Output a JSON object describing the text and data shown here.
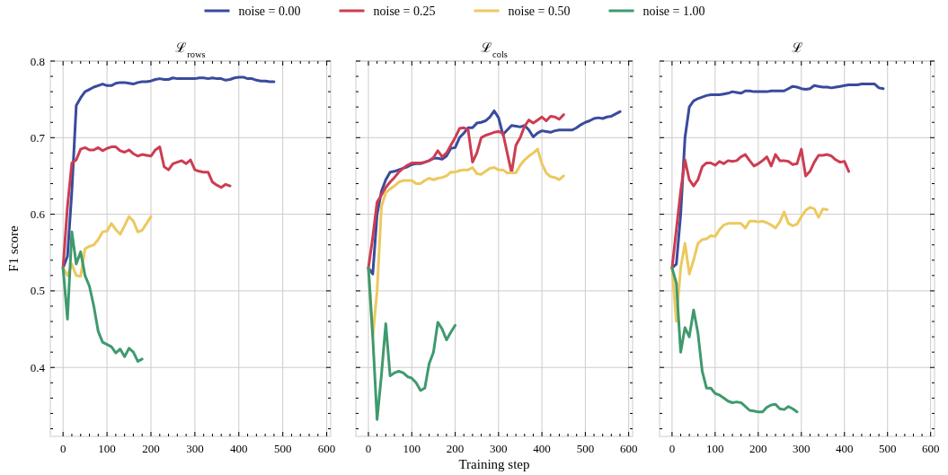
{
  "chart_data": [
    {
      "type": "line",
      "title": "ℒ$_{rows}$",
      "ylabel": "F1 score",
      "legend": "top",
      "grid": true,
      "xlim": [
        -29,
        609
      ],
      "ylim": [
        0.31,
        0.8
      ],
      "xticks": [
        0,
        {
          "value": 20,
          "label": null
        },
        {
          "value": 40,
          "label": null
        },
        {
          "value": 60,
          "label": null
        },
        {
          "value": 80,
          "label": null
        },
        100,
        {
          "value": 120,
          "label": null
        },
        {
          "value": 140,
          "label": null
        },
        {
          "value": 160,
          "label": null
        },
        {
          "value": 180,
          "label": null
        },
        200,
        {
          "value": 220,
          "label": null
        },
        {
          "value": 240,
          "label": null
        },
        {
          "value": 260,
          "label": null
        },
        {
          "value": 280,
          "label": null
        },
        300,
        {
          "value": 320,
          "label": null
        },
        {
          "value": 340,
          "label": null
        },
        {
          "value": 360,
          "label": null
        },
        {
          "value": 380,
          "label": null
        },
        400,
        {
          "value": 420,
          "label": null
        },
        {
          "value": 440,
          "label": null
        },
        {
          "value": 460,
          "label": null
        },
        {
          "value": 480,
          "label": null
        },
        500,
        {
          "value": 520,
          "label": null
        },
        {
          "value": 540,
          "label": null
        },
        {
          "value": 560,
          "label": null
        },
        {
          "value": 580,
          "label": null
        },
        600
      ],
      "yticks": [
        {
          "value": 0.32,
          "label": null
        },
        {
          "value": 0.34,
          "label": null
        },
        {
          "value": 0.36,
          "label": null
        },
        {
          "value": 0.38,
          "label": null
        },
        {
          "value": 0.4,
          "label": "0.4"
        },
        {
          "value": 0.42,
          "label": null
        },
        {
          "value": 0.44,
          "label": null
        },
        {
          "value": 0.46,
          "label": null
        },
        {
          "value": 0.48,
          "label": null
        },
        {
          "value": 0.5,
          "label": "0.5"
        },
        {
          "value": 0.52,
          "label": null
        },
        {
          "value": 0.54,
          "label": null
        },
        {
          "value": 0.56,
          "label": null
        },
        {
          "value": 0.58,
          "label": null
        },
        {
          "value": 0.6,
          "label": "0.6"
        },
        {
          "value": 0.62,
          "label": null
        },
        {
          "value": 0.64,
          "label": null
        },
        {
          "value": 0.66,
          "label": null
        },
        {
          "value": 0.68,
          "label": null
        },
        {
          "value": 0.7,
          "label": "0.7"
        },
        {
          "value": 0.72,
          "label": null
        },
        {
          "value": 0.74,
          "label": null
        },
        {
          "value": 0.76,
          "label": null
        },
        {
          "value": 0.78,
          "label": null
        },
        {
          "value": 0.8,
          "label": "0.8"
        }
      ],
      "x": [
        0,
        10,
        20,
        30,
        40,
        50,
        60,
        70,
        80,
        90,
        100,
        110,
        120,
        130,
        140,
        150,
        160,
        170,
        180,
        190,
        200,
        210,
        220,
        230,
        240,
        250,
        260,
        270,
        280,
        290,
        300,
        310,
        320,
        330,
        340,
        350,
        360,
        370,
        380,
        390,
        400,
        410,
        420,
        430,
        440,
        450,
        460,
        470,
        480
      ],
      "series": [
        {
          "name": "noise = 0.00",
          "color": "#3a4b9c",
          "values": [
            0.53,
            0.545,
            0.63,
            0.742,
            0.752,
            0.76,
            0.763,
            0.766,
            0.768,
            0.77,
            0.768,
            0.768,
            0.771,
            0.772,
            0.772,
            0.771,
            0.77,
            0.772,
            0.773,
            0.773,
            0.774,
            0.776,
            0.777,
            0.776,
            0.776,
            0.778,
            0.777,
            0.777,
            0.777,
            0.777,
            0.777,
            0.778,
            0.778,
            0.777,
            0.778,
            0.777,
            0.777,
            0.775,
            0.776,
            0.778,
            0.779,
            0.779,
            0.777,
            0.777,
            0.775,
            0.774,
            0.774,
            0.773,
            0.773
          ]
        },
        {
          "name": "noise = 0.25",
          "color": "#cc3d52",
          "values": [
            0.53,
            0.61,
            0.667,
            0.671,
            0.685,
            0.687,
            0.684,
            0.684,
            0.687,
            0.683,
            0.686,
            0.688,
            0.688,
            0.683,
            0.681,
            0.684,
            0.679,
            0.676,
            0.678,
            0.677,
            0.676,
            0.684,
            0.688,
            0.662,
            0.658,
            0.666,
            0.668,
            0.67,
            0.666,
            0.671,
            0.658,
            0.656,
            0.655,
            0.655,
            0.642,
            0.638,
            0.635,
            0.639,
            0.637,
            null,
            null,
            null,
            null,
            null,
            null,
            null,
            null,
            null,
            null
          ]
        },
        {
          "name": "noise = 0.50",
          "color": "#ecc95e",
          "values": [
            0.53,
            0.52,
            0.535,
            0.52,
            0.519,
            0.555,
            0.558,
            0.56,
            0.567,
            0.577,
            0.578,
            0.588,
            0.58,
            0.574,
            0.585,
            0.597,
            0.591,
            0.577,
            0.579,
            0.588,
            0.597,
            null,
            null,
            null,
            null,
            null,
            null,
            null,
            null,
            null,
            null,
            null,
            null,
            null,
            null,
            null,
            null,
            null,
            null,
            null,
            null,
            null,
            null,
            null,
            null,
            null,
            null,
            null,
            null
          ]
        },
        {
          "name": "noise = 1.00",
          "color": "#3f9a6e",
          "values": [
            0.53,
            0.463,
            0.577,
            0.535,
            0.551,
            0.52,
            0.506,
            0.48,
            0.447,
            0.433,
            0.43,
            0.427,
            0.419,
            0.424,
            0.414,
            0.425,
            0.42,
            0.408,
            0.411,
            null,
            null,
            null,
            null,
            null,
            null,
            null,
            null,
            null,
            null,
            null,
            null,
            null,
            null,
            null,
            null,
            null,
            null,
            null,
            null,
            null,
            null,
            null,
            null,
            null,
            null,
            null,
            null,
            null,
            null
          ]
        }
      ]
    },
    {
      "type": "line",
      "title": "ℒ$_{cols}$",
      "xlabel": "Training step",
      "grid": true,
      "tick_labels": "x",
      "xlim": [
        -29,
        609
      ],
      "ylim": [
        0.31,
        0.8
      ],
      "xticks": [
        0,
        {
          "value": 20,
          "label": null
        },
        {
          "value": 40,
          "label": null
        },
        {
          "value": 60,
          "label": null
        },
        {
          "value": 80,
          "label": null
        },
        100,
        {
          "value": 120,
          "label": null
        },
        {
          "value": 140,
          "label": null
        },
        {
          "value": 160,
          "label": null
        },
        {
          "value": 180,
          "label": null
        },
        200,
        {
          "value": 220,
          "label": null
        },
        {
          "value": 240,
          "label": null
        },
        {
          "value": 260,
          "label": null
        },
        {
          "value": 280,
          "label": null
        },
        300,
        {
          "value": 320,
          "label": null
        },
        {
          "value": 340,
          "label": null
        },
        {
          "value": 360,
          "label": null
        },
        {
          "value": 380,
          "label": null
        },
        400,
        {
          "value": 420,
          "label": null
        },
        {
          "value": 440,
          "label": null
        },
        {
          "value": 460,
          "label": null
        },
        {
          "value": 480,
          "label": null
        },
        500,
        {
          "value": 520,
          "label": null
        },
        {
          "value": 540,
          "label": null
        },
        {
          "value": 560,
          "label": null
        },
        {
          "value": 580,
          "label": null
        },
        600
      ],
      "yticks": [
        {
          "value": 0.32,
          "label": null
        },
        {
          "value": 0.34,
          "label": null
        },
        {
          "value": 0.36,
          "label": null
        },
        {
          "value": 0.38,
          "label": null
        },
        {
          "value": 0.4,
          "label": null
        },
        {
          "value": 0.42,
          "label": null
        },
        {
          "value": 0.44,
          "label": null
        },
        {
          "value": 0.46,
          "label": null
        },
        {
          "value": 0.48,
          "label": null
        },
        {
          "value": 0.5,
          "label": null
        },
        {
          "value": 0.52,
          "label": null
        },
        {
          "value": 0.54,
          "label": null
        },
        {
          "value": 0.56,
          "label": null
        },
        {
          "value": 0.58,
          "label": null
        },
        {
          "value": 0.6,
          "label": null
        },
        {
          "value": 0.62,
          "label": null
        },
        {
          "value": 0.64,
          "label": null
        },
        {
          "value": 0.66,
          "label": null
        },
        {
          "value": 0.68,
          "label": null
        },
        {
          "value": 0.7,
          "label": null
        },
        {
          "value": 0.72,
          "label": null
        },
        {
          "value": 0.74,
          "label": null
        },
        {
          "value": 0.76,
          "label": null
        },
        {
          "value": 0.78,
          "label": null
        },
        {
          "value": 0.8,
          "label": null
        }
      ],
      "x": [
        0,
        10,
        20,
        30,
        40,
        50,
        60,
        70,
        80,
        90,
        100,
        110,
        120,
        130,
        140,
        150,
        160,
        170,
        180,
        190,
        200,
        210,
        220,
        230,
        240,
        250,
        260,
        270,
        280,
        290,
        300,
        310,
        320,
        330,
        340,
        350,
        360,
        370,
        380,
        390,
        400,
        410,
        420,
        430,
        440,
        450,
        460,
        470,
        480,
        490,
        500,
        510,
        520,
        530,
        540,
        550,
        560,
        570,
        580
      ],
      "series": [
        {
          "color": "#3a4b9c",
          "values": [
            0.53,
            0.522,
            0.6,
            0.63,
            0.645,
            0.655,
            0.656,
            0.658,
            0.66,
            0.662,
            0.665,
            0.666,
            0.666,
            0.668,
            0.67,
            0.673,
            0.673,
            0.672,
            0.676,
            0.686,
            0.687,
            0.7,
            0.706,
            0.713,
            0.713,
            0.719,
            0.72,
            0.722,
            0.727,
            0.735,
            0.726,
            0.704,
            0.71,
            0.716,
            0.715,
            0.714,
            0.716,
            0.71,
            0.701,
            0.706,
            0.709,
            0.708,
            0.707,
            0.709,
            0.71,
            0.71,
            0.71,
            0.71,
            0.713,
            0.717,
            0.72,
            0.722,
            0.725,
            0.726,
            0.725,
            0.727,
            0.728,
            0.731,
            0.734
          ]
        },
        {
          "color": "#cc3d52",
          "values": [
            0.53,
            0.57,
            0.616,
            0.625,
            0.635,
            0.642,
            0.648,
            0.655,
            0.66,
            0.664,
            0.667,
            0.667,
            0.667,
            0.668,
            0.67,
            0.674,
            0.683,
            0.675,
            0.68,
            0.69,
            0.7,
            0.712,
            0.713,
            0.71,
            0.668,
            0.68,
            0.7,
            0.703,
            0.705,
            0.707,
            0.708,
            0.706,
            0.68,
            0.654,
            0.69,
            0.7,
            0.715,
            0.723,
            0.719,
            0.723,
            0.727,
            0.722,
            0.728,
            0.727,
            0.724,
            0.73,
            null,
            null,
            null,
            null,
            null,
            null,
            null,
            null,
            null,
            null,
            null,
            null,
            null
          ]
        },
        {
          "color": "#ecc95e",
          "values": [
            0.53,
            0.44,
            0.5,
            0.61,
            0.628,
            0.633,
            0.637,
            0.642,
            0.644,
            0.644,
            0.644,
            0.64,
            0.64,
            0.644,
            0.647,
            0.645,
            0.647,
            0.648,
            0.65,
            0.655,
            0.655,
            0.657,
            0.658,
            0.658,
            0.661,
            0.653,
            0.652,
            0.656,
            0.66,
            0.661,
            0.658,
            0.658,
            0.654,
            0.654,
            0.654,
            0.664,
            0.671,
            0.676,
            0.68,
            0.685,
            0.666,
            0.654,
            0.649,
            0.648,
            0.645,
            0.65,
            null,
            null,
            null,
            null,
            null,
            null,
            null,
            null,
            null,
            null,
            null,
            null,
            null
          ]
        },
        {
          "color": "#3f9a6e",
          "values": [
            0.53,
            0.44,
            0.332,
            0.39,
            0.457,
            0.389,
            0.393,
            0.395,
            0.393,
            0.388,
            0.386,
            0.38,
            0.37,
            0.373,
            0.405,
            0.42,
            0.459,
            0.45,
            0.436,
            0.446,
            0.455,
            null,
            null,
            null,
            null,
            null,
            null,
            null,
            null,
            null,
            null,
            null,
            null,
            null,
            null,
            null,
            null,
            null,
            null,
            null,
            null,
            null,
            null,
            null,
            null,
            null,
            null,
            null,
            null,
            null,
            null,
            null,
            null,
            null,
            null,
            null,
            null,
            null,
            null
          ]
        }
      ]
    },
    {
      "type": "line",
      "title": "ℒ",
      "grid": true,
      "tick_labels": "x",
      "xlim": [
        -29,
        609
      ],
      "ylim": [
        0.31,
        0.8
      ],
      "xticks": [
        0,
        {
          "value": 20,
          "label": null
        },
        {
          "value": 40,
          "label": null
        },
        {
          "value": 60,
          "label": null
        },
        {
          "value": 80,
          "label": null
        },
        100,
        {
          "value": 120,
          "label": null
        },
        {
          "value": 140,
          "label": null
        },
        {
          "value": 160,
          "label": null
        },
        {
          "value": 180,
          "label": null
        },
        200,
        {
          "value": 220,
          "label": null
        },
        {
          "value": 240,
          "label": null
        },
        {
          "value": 260,
          "label": null
        },
        {
          "value": 280,
          "label": null
        },
        300,
        {
          "value": 320,
          "label": null
        },
        {
          "value": 340,
          "label": null
        },
        {
          "value": 360,
          "label": null
        },
        {
          "value": 380,
          "label": null
        },
        400,
        {
          "value": 420,
          "label": null
        },
        {
          "value": 440,
          "label": null
        },
        {
          "value": 460,
          "label": null
        },
        {
          "value": 480,
          "label": null
        },
        500,
        {
          "value": 520,
          "label": null
        },
        {
          "value": 540,
          "label": null
        },
        {
          "value": 560,
          "label": null
        },
        {
          "value": 580,
          "label": null
        },
        600
      ],
      "yticks": [
        {
          "value": 0.32,
          "label": null
        },
        {
          "value": 0.34,
          "label": null
        },
        {
          "value": 0.36,
          "label": null
        },
        {
          "value": 0.38,
          "label": null
        },
        {
          "value": 0.4,
          "label": null
        },
        {
          "value": 0.42,
          "label": null
        },
        {
          "value": 0.44,
          "label": null
        },
        {
          "value": 0.46,
          "label": null
        },
        {
          "value": 0.48,
          "label": null
        },
        {
          "value": 0.5,
          "label": null
        },
        {
          "value": 0.52,
          "label": null
        },
        {
          "value": 0.54,
          "label": null
        },
        {
          "value": 0.56,
          "label": null
        },
        {
          "value": 0.58,
          "label": null
        },
        {
          "value": 0.6,
          "label": null
        },
        {
          "value": 0.62,
          "label": null
        },
        {
          "value": 0.64,
          "label": null
        },
        {
          "value": 0.66,
          "label": null
        },
        {
          "value": 0.68,
          "label": null
        },
        {
          "value": 0.7,
          "label": null
        },
        {
          "value": 0.72,
          "label": null
        },
        {
          "value": 0.74,
          "label": null
        },
        {
          "value": 0.76,
          "label": null
        },
        {
          "value": 0.78,
          "label": null
        },
        {
          "value": 0.8,
          "label": null
        }
      ],
      "x": [
        0,
        10,
        20,
        30,
        40,
        50,
        60,
        70,
        80,
        90,
        100,
        110,
        120,
        130,
        140,
        150,
        160,
        170,
        180,
        190,
        200,
        210,
        220,
        230,
        240,
        250,
        260,
        270,
        280,
        290,
        300,
        310,
        320,
        330,
        340,
        350,
        360,
        370,
        380,
        390,
        400,
        410,
        420,
        430,
        440,
        450,
        460,
        470,
        480,
        490
      ],
      "series": [
        {
          "color": "#3a4b9c",
          "values": [
            0.53,
            0.535,
            0.6,
            0.7,
            0.74,
            0.748,
            0.751,
            0.753,
            0.755,
            0.756,
            0.756,
            0.756,
            0.757,
            0.758,
            0.76,
            0.759,
            0.758,
            0.761,
            0.761,
            0.76,
            0.76,
            0.76,
            0.76,
            0.761,
            0.761,
            0.761,
            0.761,
            0.764,
            0.767,
            0.766,
            0.764,
            0.763,
            0.764,
            0.768,
            0.767,
            0.766,
            0.766,
            0.765,
            0.766,
            0.767,
            0.768,
            0.769,
            0.769,
            0.769,
            0.77,
            0.77,
            0.77,
            0.77,
            0.765,
            0.764
          ]
        },
        {
          "color": "#cc3d52",
          "values": [
            0.53,
            0.58,
            0.63,
            0.671,
            0.645,
            0.637,
            0.645,
            0.662,
            0.667,
            0.667,
            0.664,
            0.669,
            0.666,
            0.67,
            0.669,
            0.67,
            0.675,
            0.678,
            0.67,
            0.663,
            0.666,
            0.67,
            0.675,
            0.663,
            0.678,
            0.67,
            0.67,
            0.669,
            0.665,
            0.666,
            0.685,
            0.65,
            0.656,
            0.668,
            0.677,
            0.677,
            0.678,
            0.676,
            0.671,
            0.668,
            0.669,
            0.656,
            null,
            null,
            null,
            null,
            null,
            null,
            null,
            null
          ]
        },
        {
          "color": "#ecc95e",
          "values": [
            0.53,
            0.46,
            0.53,
            0.562,
            0.522,
            0.54,
            0.562,
            0.567,
            0.568,
            0.572,
            0.571,
            0.58,
            0.586,
            0.588,
            0.588,
            0.588,
            0.588,
            0.582,
            0.591,
            0.591,
            0.59,
            0.591,
            0.589,
            0.586,
            0.582,
            0.59,
            0.603,
            0.588,
            0.585,
            0.587,
            0.597,
            0.605,
            0.609,
            0.607,
            0.596,
            0.607,
            0.606,
            null,
            null,
            null,
            null,
            null,
            null,
            null,
            null,
            null,
            null,
            null,
            null,
            null
          ]
        },
        {
          "color": "#3f9a6e",
          "values": [
            0.53,
            0.51,
            0.42,
            0.452,
            0.44,
            0.475,
            0.445,
            0.395,
            0.373,
            0.373,
            0.366,
            0.364,
            0.36,
            0.356,
            0.354,
            0.355,
            0.354,
            0.349,
            0.344,
            0.343,
            0.342,
            0.342,
            0.348,
            0.351,
            0.352,
            0.346,
            0.345,
            0.349,
            0.346,
            0.342,
            null,
            null,
            null,
            null,
            null,
            null,
            null,
            null,
            null,
            null,
            null,
            null,
            null,
            null,
            null,
            null,
            null,
            null,
            null,
            null
          ]
        }
      ]
    }
  ]
}
